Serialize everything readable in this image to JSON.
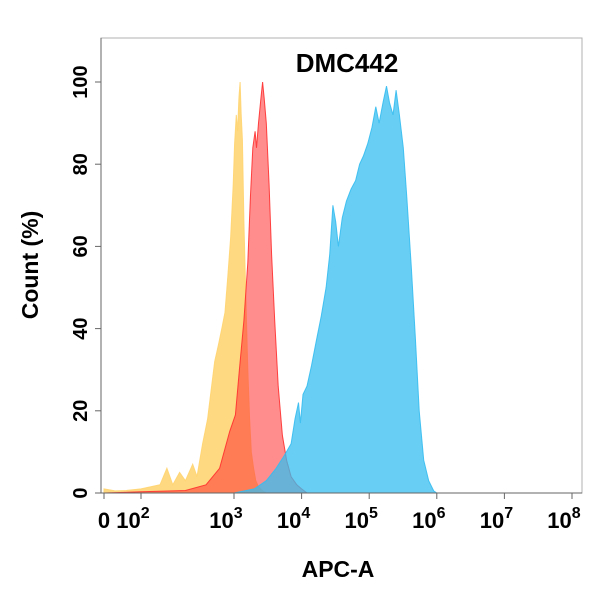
{
  "chart_data": {
    "type": "area",
    "title": "DMC442",
    "xlabel": "APC-A",
    "ylabel": "Count  (%)",
    "x_scale": "biexponential",
    "xlim": [
      0,
      100000000
    ],
    "ylim": [
      0,
      100
    ],
    "x_ticks": [
      {
        "value": 0,
        "base": "0",
        "exp": ""
      },
      {
        "value": 100,
        "base": "10",
        "exp": "2"
      },
      {
        "value": 1000,
        "base": "10",
        "exp": "3"
      },
      {
        "value": 10000,
        "base": "10",
        "exp": "4"
      },
      {
        "value": 100000,
        "base": "10",
        "exp": "5"
      },
      {
        "value": 1000000,
        "base": "10",
        "exp": "6"
      },
      {
        "value": 10000000,
        "base": "10",
        "exp": "7"
      },
      {
        "value": 100000000,
        "base": "10",
        "exp": "8"
      }
    ],
    "y_ticks": [
      "0",
      "20",
      "40",
      "60",
      "80",
      "100"
    ],
    "grid": false,
    "series": [
      {
        "color": "#ffd470",
        "opacity": 0.88,
        "points": [
          [
            0,
            1
          ],
          [
            30,
            0.5
          ],
          [
            60,
            0.6
          ],
          [
            100,
            1
          ],
          [
            160,
            2
          ],
          [
            190,
            6
          ],
          [
            220,
            2
          ],
          [
            260,
            5
          ],
          [
            300,
            3
          ],
          [
            360,
            7
          ],
          [
            400,
            4
          ],
          [
            460,
            12
          ],
          [
            520,
            18
          ],
          [
            560,
            24
          ],
          [
            620,
            32
          ],
          [
            680,
            36
          ],
          [
            740,
            40
          ],
          [
            800,
            44
          ],
          [
            860,
            53
          ],
          [
            920,
            62
          ],
          [
            980,
            75
          ],
          [
            1020,
            85
          ],
          [
            1080,
            92
          ],
          [
            1130,
            88
          ],
          [
            1180,
            96
          ],
          [
            1230,
            100
          ],
          [
            1280,
            92
          ],
          [
            1330,
            86
          ],
          [
            1400,
            66
          ],
          [
            1500,
            47
          ],
          [
            1600,
            30
          ],
          [
            1700,
            18
          ],
          [
            1800,
            10
          ],
          [
            1950,
            6
          ],
          [
            2100,
            3
          ],
          [
            2300,
            1.5
          ],
          [
            2600,
            0.6
          ],
          [
            3000,
            0
          ]
        ]
      },
      {
        "color": "#ff3030",
        "opacity": 0.55,
        "points": [
          [
            0,
            0
          ],
          [
            100,
            0.3
          ],
          [
            300,
            0.6
          ],
          [
            500,
            2
          ],
          [
            700,
            6
          ],
          [
            900,
            15
          ],
          [
            1050,
            19
          ],
          [
            1200,
            30
          ],
          [
            1400,
            42
          ],
          [
            1600,
            56
          ],
          [
            1750,
            72
          ],
          [
            1900,
            84
          ],
          [
            2050,
            88
          ],
          [
            2150,
            84
          ],
          [
            2300,
            90
          ],
          [
            2500,
            96
          ],
          [
            2650,
            100
          ],
          [
            2800,
            96
          ],
          [
            3000,
            90
          ],
          [
            3300,
            75
          ],
          [
            3600,
            58
          ],
          [
            4000,
            42
          ],
          [
            4500,
            26
          ],
          [
            5200,
            14
          ],
          [
            6000,
            8
          ],
          [
            7000,
            4
          ],
          [
            8500,
            2
          ],
          [
            10000,
            1
          ],
          [
            12000,
            0
          ]
        ]
      },
      {
        "color": "#36bdf0",
        "opacity": 0.75,
        "points": [
          [
            0,
            0
          ],
          [
            1000,
            0
          ],
          [
            2000,
            1
          ],
          [
            3000,
            3
          ],
          [
            4200,
            6
          ],
          [
            5500,
            9
          ],
          [
            7000,
            12
          ],
          [
            8000,
            18
          ],
          [
            9000,
            22
          ],
          [
            9600,
            17
          ],
          [
            10500,
            24
          ],
          [
            12000,
            26
          ],
          [
            14000,
            31
          ],
          [
            16500,
            37
          ],
          [
            19500,
            43
          ],
          [
            23000,
            50
          ],
          [
            26000,
            58
          ],
          [
            29000,
            70
          ],
          [
            32000,
            66
          ],
          [
            35000,
            60
          ],
          [
            40000,
            67
          ],
          [
            46000,
            71
          ],
          [
            54000,
            74
          ],
          [
            63000,
            76
          ],
          [
            72000,
            80
          ],
          [
            82000,
            82
          ],
          [
            95000,
            85
          ],
          [
            110000,
            89
          ],
          [
            125000,
            94
          ],
          [
            140000,
            90
          ],
          [
            160000,
            95
          ],
          [
            180000,
            99
          ],
          [
            200000,
            95
          ],
          [
            225000,
            92
          ],
          [
            250000,
            98
          ],
          [
            280000,
            92
          ],
          [
            320000,
            84
          ],
          [
            360000,
            72
          ],
          [
            420000,
            55
          ],
          [
            480000,
            38
          ],
          [
            550000,
            20
          ],
          [
            640000,
            8
          ],
          [
            760000,
            3
          ],
          [
            900000,
            0.5
          ],
          [
            1000000,
            0
          ]
        ]
      }
    ]
  }
}
